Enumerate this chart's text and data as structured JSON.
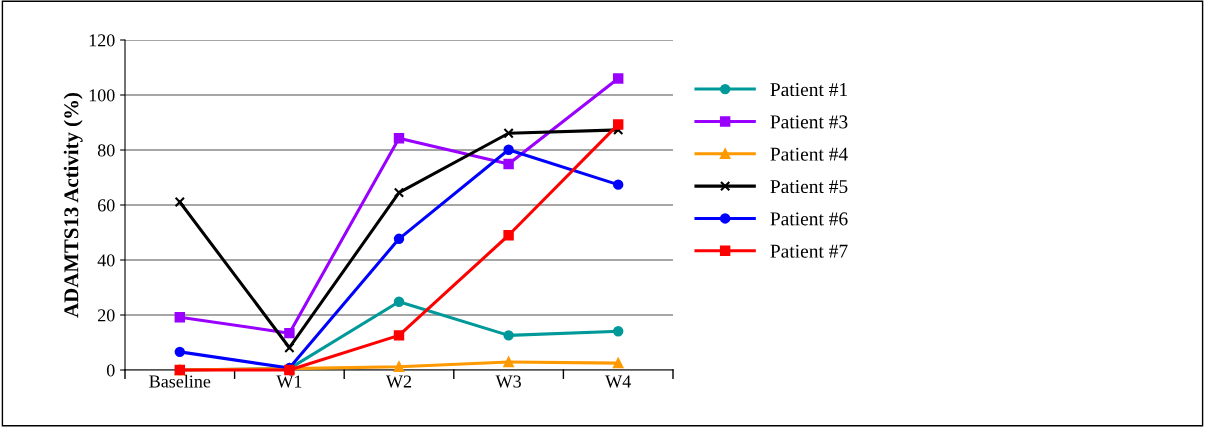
{
  "chart_data": {
    "type": "line",
    "ylabel": "ADAMTS13 Activity (%)",
    "categories": [
      "Baseline",
      "W1",
      "W2",
      "W3",
      "W4"
    ],
    "ylim": [
      0,
      120
    ],
    "yticks": [
      0,
      20,
      40,
      60,
      80,
      100,
      120
    ],
    "grid": "y",
    "legend": "right",
    "series": [
      {
        "name": "Patient #1",
        "color": "#009999",
        "marker": "circle",
        "values": [
          0,
          0.5,
          24.8,
          12.6,
          14.1
        ]
      },
      {
        "name": "Patient #3",
        "color": "#9900ff",
        "marker": "square",
        "values": [
          19.2,
          13.4,
          84.3,
          74.9,
          106
        ]
      },
      {
        "name": "Patient #4",
        "color": "#ff9900",
        "marker": "triangle",
        "values": [
          0,
          0.5,
          1.2,
          2.9,
          2.5
        ]
      },
      {
        "name": "Patient #5",
        "color": "#000000",
        "marker": "cross",
        "values": [
          61.1,
          8.1,
          64.5,
          86.1,
          87.3
        ]
      },
      {
        "name": "Patient #6",
        "color": "#0000ff",
        "marker": "circle",
        "values": [
          6.6,
          0.7,
          47.7,
          80.1,
          67.4
        ]
      },
      {
        "name": "Patient #7",
        "color": "#ff0000",
        "marker": "square",
        "values": [
          0,
          0,
          12.6,
          49,
          89.3
        ]
      }
    ]
  }
}
